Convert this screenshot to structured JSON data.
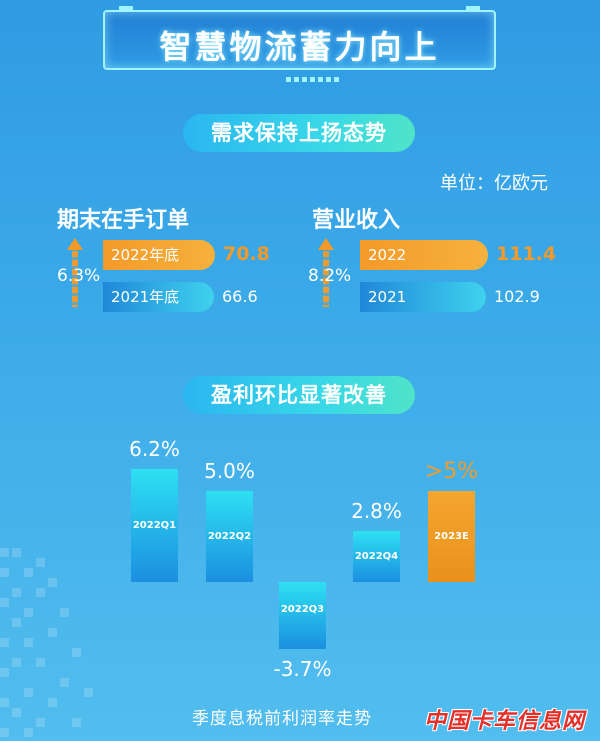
{
  "title": "智慧物流蓄力向上",
  "sections": {
    "demand": {
      "title": "需求保持上扬态势",
      "unit": "单位：亿欧元"
    },
    "profit": {
      "title": "盈利环比显著改善",
      "caption": "季度息税前利润率走势"
    }
  },
  "orders": {
    "title": "期末在手订单",
    "growth": "6.3%",
    "rows": [
      {
        "label": "2022年底",
        "value": "70.8",
        "num": 70.8
      },
      {
        "label": "2021年底",
        "value": "66.6",
        "num": 66.6
      }
    ]
  },
  "revenue": {
    "title": "营业收入",
    "growth": "8.2%",
    "rows": [
      {
        "label": "2022",
        "value": "111.4",
        "num": 111.4
      },
      {
        "label": "2021",
        "value": "102.9",
        "num": 102.9
      }
    ]
  },
  "chart_data": {
    "type": "bar",
    "categories": [
      "2022Q1",
      "2022Q2",
      "2022Q3",
      "2022Q4",
      "2023E"
    ],
    "values": [
      6.2,
      5.0,
      -3.7,
      2.8,
      5.0
    ],
    "value_labels": [
      "6.2%",
      "5.0%",
      "-3.7%",
      "2.8%",
      ">5%"
    ],
    "highlight": "2023E",
    "colors": {
      "actual": "#2ee0f2",
      "estimate": "#f39a29"
    }
  },
  "watermark": "中国卡车信息网",
  "colors": {
    "accent": "#f39a29",
    "background": "#3aa9e8"
  }
}
